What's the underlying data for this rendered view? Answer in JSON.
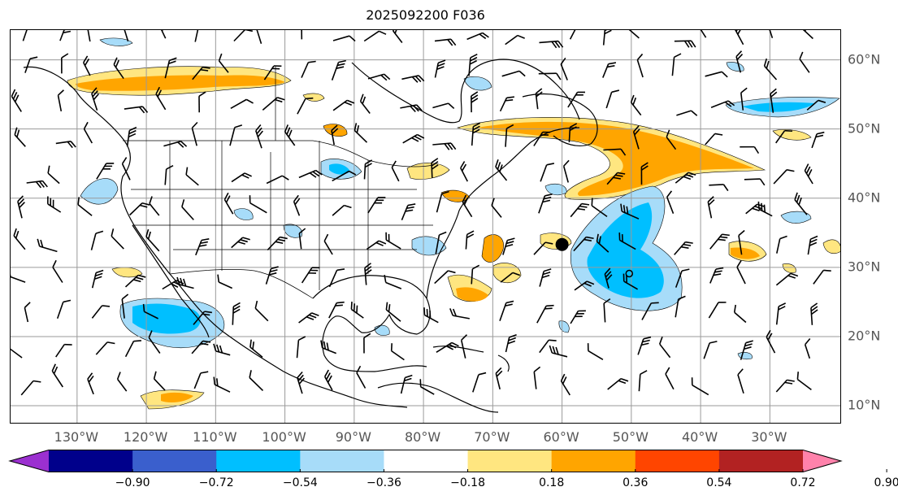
{
  "title": "2025092200 F036",
  "map": {
    "lon_ticks": [
      {
        "value": -130,
        "label": "130°W"
      },
      {
        "value": -120,
        "label": "120°W"
      },
      {
        "value": -110,
        "label": "110°W"
      },
      {
        "value": -100,
        "label": "100°W"
      },
      {
        "value": -90,
        "label": "90°W"
      },
      {
        "value": -80,
        "label": "80°W"
      },
      {
        "value": -70,
        "label": "70°W"
      },
      {
        "value": -60,
        "label": "60°W"
      },
      {
        "value": -50,
        "label": "50°W"
      },
      {
        "value": -40,
        "label": "40°W"
      },
      {
        "value": -30,
        "label": "30°W"
      }
    ],
    "lat_ticks": [
      {
        "value": 60,
        "label": "60°N"
      },
      {
        "value": 50,
        "label": "50°N"
      },
      {
        "value": 40,
        "label": "40°N"
      },
      {
        "value": 30,
        "label": "30°N"
      },
      {
        "value": 20,
        "label": "20°N"
      },
      {
        "value": 10,
        "label": "10°N"
      }
    ],
    "storm_markers": [
      {
        "lon": -60.0,
        "lat": 33.3,
        "kind": "filled"
      },
      {
        "lon": -50.3,
        "lat": 29.1,
        "kind": "open"
      }
    ]
  },
  "colorbar": {
    "tick_labels": [
      "−0.90",
      "−0.72",
      "−0.54",
      "−0.36",
      "−0.18",
      "0.18",
      "0.36",
      "0.54",
      "0.72",
      "0.90"
    ],
    "colors": [
      "#9b30d0",
      "#00008b",
      "#3a5fcd",
      "#00bfff",
      "#a7dcf9",
      "#ffffff",
      "#ffe680",
      "#ffa500",
      "#ff4500",
      "#b22222",
      "#ff82ab"
    ]
  }
}
